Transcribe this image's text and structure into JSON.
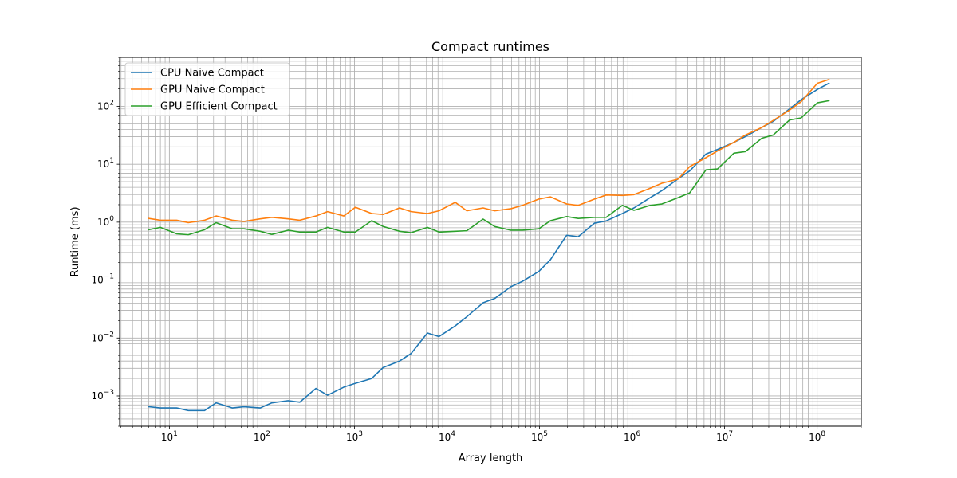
{
  "chart_data": {
    "type": "line",
    "title": "Compact runtimes",
    "xlabel": "Array length",
    "ylabel": "Runtime (ms)",
    "xscale": "log",
    "yscale": "log",
    "xlim": [
      2.9,
      300000000
    ],
    "ylim": [
      0.0003,
      700
    ],
    "grid": "major and minor",
    "legend_position": "top-left",
    "x_ticks": [
      {
        "value": 10,
        "base": "10",
        "exp": "1"
      },
      {
        "value": 100,
        "base": "10",
        "exp": "2"
      },
      {
        "value": 1000,
        "base": "10",
        "exp": "3"
      },
      {
        "value": 10000,
        "base": "10",
        "exp": "4"
      },
      {
        "value": 100000,
        "base": "10",
        "exp": "5"
      },
      {
        "value": 1000000,
        "base": "10",
        "exp": "6"
      },
      {
        "value": 10000000,
        "base": "10",
        "exp": "7"
      },
      {
        "value": 100000000,
        "base": "10",
        "exp": "8"
      }
    ],
    "y_ticks": [
      {
        "value": 0.001,
        "base": "10",
        "exp": "−3"
      },
      {
        "value": 0.01,
        "base": "10",
        "exp": "−2"
      },
      {
        "value": 0.1,
        "base": "10",
        "exp": "−1"
      },
      {
        "value": 1,
        "base": "10",
        "exp": "0"
      },
      {
        "value": 10,
        "base": "10",
        "exp": "1"
      },
      {
        "value": 100,
        "base": "10",
        "exp": "2"
      }
    ],
    "x": [
      6,
      8,
      12,
      16,
      24,
      32,
      48,
      64,
      96,
      128,
      192,
      256,
      384,
      512,
      768,
      1024,
      1536,
      2048,
      3072,
      4096,
      6144,
      8192,
      12288,
      16384,
      24576,
      32768,
      49152,
      65536,
      98304,
      131072,
      196608,
      262144,
      393216,
      524288,
      786432,
      1048576,
      1572864,
      2097152,
      3145728,
      4194304,
      6291456,
      8388608,
      12582912,
      16777216,
      25165824,
      33554432,
      50331648,
      67108864,
      100663296,
      134217728
    ],
    "series": [
      {
        "name": "CPU Naive Compact",
        "color": "#1f77b4",
        "values": [
          0.00065,
          0.00062,
          0.00062,
          0.00056,
          0.00056,
          0.00076,
          0.00062,
          0.00065,
          0.00062,
          0.00076,
          0.00083,
          0.00078,
          0.00135,
          0.00103,
          0.00142,
          0.00165,
          0.002,
          0.0031,
          0.004,
          0.0054,
          0.0122,
          0.0106,
          0.0162,
          0.0233,
          0.0406,
          0.0481,
          0.0772,
          0.0954,
          0.141,
          0.224,
          0.595,
          0.56,
          0.963,
          1.05,
          1.41,
          1.76,
          2.65,
          3.5,
          5.59,
          7.66,
          15.0,
          18.0,
          23.8,
          30.0,
          43.0,
          55.0,
          89.9,
          130.0,
          196.0,
          250.0
        ]
      },
      {
        "name": "GPU Naive Compact",
        "color": "#ff7f0e",
        "values": [
          1.16,
          1.08,
          1.08,
          0.981,
          1.08,
          1.28,
          1.08,
          1.03,
          1.14,
          1.21,
          1.14,
          1.08,
          1.28,
          1.52,
          1.28,
          1.81,
          1.41,
          1.36,
          1.76,
          1.52,
          1.41,
          1.57,
          2.2,
          1.57,
          1.76,
          1.57,
          1.71,
          1.95,
          2.5,
          2.73,
          2.06,
          1.95,
          2.5,
          2.94,
          2.89,
          2.99,
          3.85,
          4.7,
          5.55,
          9.1,
          13.0,
          17.0,
          23.8,
          32.0,
          43.0,
          57.0,
          86.0,
          120.0,
          250.0,
          290.0
        ]
      },
      {
        "name": "GPU Efficient Compact",
        "color": "#2ca02c",
        "values": [
          0.741,
          0.813,
          0.629,
          0.607,
          0.741,
          0.981,
          0.768,
          0.768,
          0.696,
          0.615,
          0.726,
          0.675,
          0.675,
          0.813,
          0.675,
          0.675,
          1.06,
          0.842,
          0.696,
          0.658,
          0.813,
          0.675,
          0.696,
          0.711,
          1.13,
          0.842,
          0.726,
          0.726,
          0.768,
          1.06,
          1.25,
          1.16,
          1.21,
          1.21,
          1.95,
          1.6,
          1.95,
          2.06,
          2.65,
          3.2,
          8.0,
          8.3,
          15.5,
          16.5,
          28.0,
          32.0,
          58.0,
          63.0,
          115.0,
          125.0
        ]
      }
    ]
  }
}
